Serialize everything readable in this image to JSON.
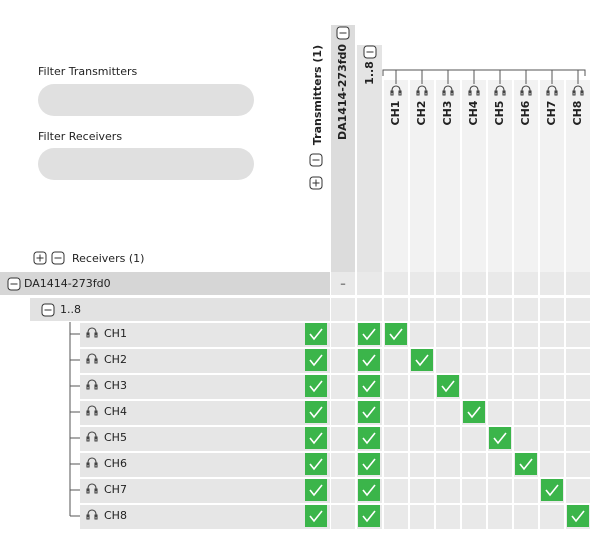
{
  "filters": [
    {
      "label": "Filter Transmitters"
    },
    {
      "label": "Filter Receivers"
    }
  ],
  "transmitters": {
    "label": "Transmitters (1)",
    "device": "DA1414-273fd0",
    "group": "1..8",
    "channels": [
      "CH1",
      "CH2",
      "CH3",
      "CH4",
      "CH5",
      "CH6",
      "CH7",
      "CH8"
    ]
  },
  "receivers": {
    "label": "Receivers (1)",
    "device": "DA1414-273fd0",
    "device_cell": "–",
    "group": "1..8",
    "channels": [
      "CH1",
      "CH2",
      "CH3",
      "CH4",
      "CH5",
      "CH6",
      "CH7",
      "CH8"
    ]
  }
}
